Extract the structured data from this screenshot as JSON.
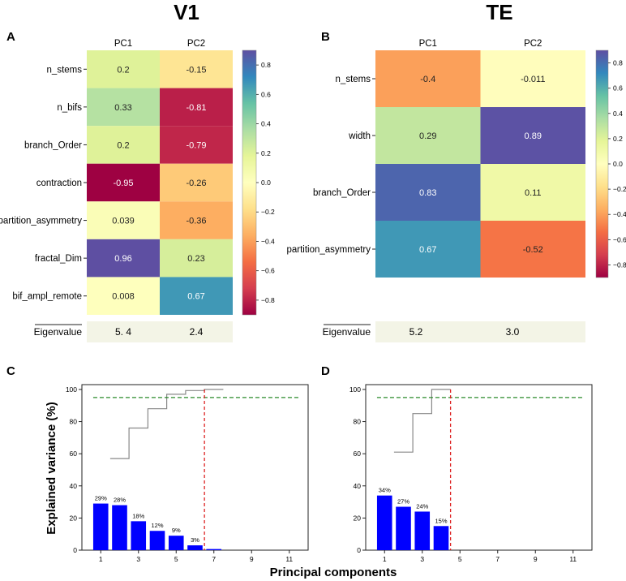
{
  "figure": {
    "left_title": "V1",
    "right_title": "TE",
    "panel_labels": [
      "A",
      "B",
      "C",
      "D"
    ],
    "shared_xlabel": "Principal components",
    "shared_ylabel": "Explained variance (%)"
  },
  "colors": {
    "bar": "#0000ff",
    "cumulative_line": "#888888",
    "threshold_line": "#2a8a2a",
    "cutoff_line": "#dd2222",
    "eigen_bg": "#f3f4e6"
  },
  "chart_data": [
    {
      "panel": "A",
      "type": "heatmap",
      "title": "V1",
      "columns": [
        "PC1",
        "PC2"
      ],
      "rows": [
        "n_stems",
        "n_bifs",
        "branch_Order",
        "contraction",
        "partition_asymmetry",
        "fractal_Dim",
        "bif_ampl_remote"
      ],
      "values": [
        [
          0.2,
          -0.15
        ],
        [
          0.33,
          -0.81
        ],
        [
          0.2,
          -0.79
        ],
        [
          -0.95,
          -0.26
        ],
        [
          0.039,
          -0.36
        ],
        [
          0.96,
          0.23
        ],
        [
          0.008,
          0.67
        ]
      ],
      "value_labels": [
        [
          "0.2",
          "-0.15"
        ],
        [
          "0.33",
          "-0.81"
        ],
        [
          "0.2",
          "-0.79"
        ],
        [
          "-0.95",
          "-0.26"
        ],
        [
          "0.039",
          "-0.36"
        ],
        [
          "0.96",
          "0.23"
        ],
        [
          "0.008",
          "0.67"
        ]
      ],
      "colorbar": {
        "min": -0.9,
        "max": 0.9,
        "ticks": [
          "0.8",
          "0.6",
          "0.4",
          "0.2",
          "0.0",
          "−0.2",
          "−0.4",
          "−0.6",
          "−0.8"
        ],
        "tick_values": [
          0.8,
          0.6,
          0.4,
          0.2,
          0.0,
          -0.2,
          -0.4,
          -0.6,
          -0.8
        ]
      },
      "eigenvalue_label": "Eigenvalue",
      "eigenvalues": [
        "5. 4",
        "2.4"
      ]
    },
    {
      "panel": "B",
      "type": "heatmap",
      "title": "TE",
      "columns": [
        "PC1",
        "PC2"
      ],
      "rows": [
        "n_stems",
        "width",
        "branch_Order",
        "partition_asymmetry"
      ],
      "values": [
        [
          -0.4,
          -0.011
        ],
        [
          0.29,
          0.89
        ],
        [
          0.83,
          0.11
        ],
        [
          0.67,
          -0.52
        ]
      ],
      "value_labels": [
        [
          "-0.4",
          "-0.011"
        ],
        [
          "0.29",
          "0.89"
        ],
        [
          "0.83",
          "0.11"
        ],
        [
          "0.67",
          "-0.52"
        ]
      ],
      "colorbar": {
        "min": -0.9,
        "max": 0.9,
        "ticks": [
          "0.8",
          "0.6",
          "0.4",
          "0.2",
          "0.0",
          "−0.2",
          "−0.4",
          "−0.6",
          "−0.8"
        ],
        "tick_values": [
          0.8,
          0.6,
          0.4,
          0.2,
          0.0,
          -0.2,
          -0.4,
          -0.6,
          -0.8
        ]
      },
      "eigenvalue_label": "Eigenvalue",
      "eigenvalues": [
        "5.2",
        "3.0"
      ]
    },
    {
      "panel": "C",
      "type": "bar",
      "categories": [
        1,
        2,
        3,
        4,
        5,
        6,
        7
      ],
      "values": [
        29,
        28,
        18,
        12,
        9,
        3,
        0.7
      ],
      "bar_labels": [
        "29%",
        "28%",
        "18%",
        "12%",
        "9%",
        "3%",
        ""
      ],
      "cumulative": [
        57,
        76,
        88,
        97,
        99.3,
        100
      ],
      "threshold": 95,
      "cutoff_component": 6,
      "xlim": [
        0,
        12
      ],
      "ylim": [
        0,
        103
      ],
      "xticks": [
        "1",
        "3",
        "5",
        "7",
        "9",
        "11"
      ],
      "xtick_values": [
        1,
        3,
        5,
        7,
        9,
        11
      ],
      "yticks": [
        "0",
        "20",
        "40",
        "60",
        "80",
        "100"
      ],
      "ytick_values": [
        0,
        20,
        40,
        60,
        80,
        100
      ],
      "threshold_x_range": [
        0.6,
        11.5
      ]
    },
    {
      "panel": "D",
      "type": "bar",
      "categories": [
        1,
        2,
        3,
        4
      ],
      "values": [
        34,
        27,
        24,
        15
      ],
      "bar_labels": [
        "34%",
        "27%",
        "24%",
        "15%"
      ],
      "cumulative": [
        61,
        85,
        100
      ],
      "threshold": 95,
      "cutoff_component": 4,
      "xlim": [
        0,
        12
      ],
      "ylim": [
        0,
        103
      ],
      "xticks": [
        "1",
        "3",
        "5",
        "7",
        "9",
        "11"
      ],
      "xtick_values": [
        1,
        3,
        5,
        7,
        9,
        11
      ],
      "yticks": [
        "0",
        "20",
        "40",
        "60",
        "80",
        "100"
      ],
      "ytick_values": [
        0,
        20,
        40,
        60,
        80,
        100
      ],
      "threshold_x_range": [
        0.6,
        11.5
      ]
    }
  ]
}
